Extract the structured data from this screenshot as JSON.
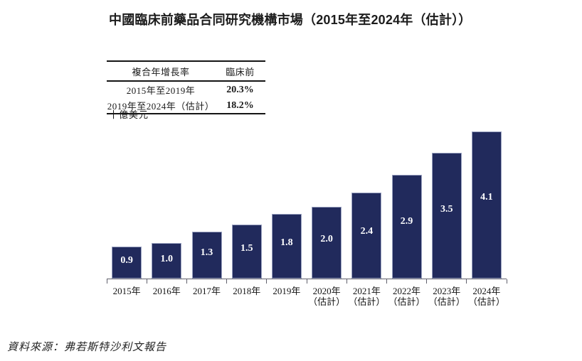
{
  "title": "中國臨床前藥品合同研究機構市場（2015年至2024年（估計））",
  "cagr_table": {
    "headers": [
      "複合年增長率",
      "臨床前"
    ],
    "rows": [
      {
        "period": "2015年至2019年",
        "value": "20.3%"
      },
      {
        "period": "2019年至2024年（估計）",
        "value": "18.2%"
      }
    ]
  },
  "y_axis_unit": "十億美元",
  "source_note": "資料來源：弗若斯特沙利文報告",
  "colors": {
    "bar": "#212a5c",
    "bar_edge": "#9aa2c0",
    "bar_label": "#ffffff",
    "axis": "#60606c",
    "text": "#1a1a1a"
  },
  "chart_data": {
    "type": "bar",
    "title": "中國臨床前藥品合同研究機構市場（2015年至2024年（估計））",
    "categories": [
      "2015年",
      "2016年",
      "2017年",
      "2018年",
      "2019年",
      "2020年\n（估計）",
      "2021年\n（估計）",
      "2022年\n（估計）",
      "2023年\n（估計）",
      "2024年\n（估計）"
    ],
    "values": [
      0.9,
      1.0,
      1.3,
      1.5,
      1.8,
      2.0,
      2.4,
      2.9,
      3.5,
      4.1
    ],
    "value_labels": [
      "0.9",
      "1.0",
      "1.3",
      "1.5",
      "1.8",
      "2.0",
      "2.4",
      "2.9",
      "3.5",
      "4.1"
    ],
    "xlabel": "",
    "ylabel": "十億美元",
    "ylim": [
      0,
      4.2
    ],
    "grid": false,
    "legend": "none",
    "value_labels_position": "inside-upper"
  }
}
